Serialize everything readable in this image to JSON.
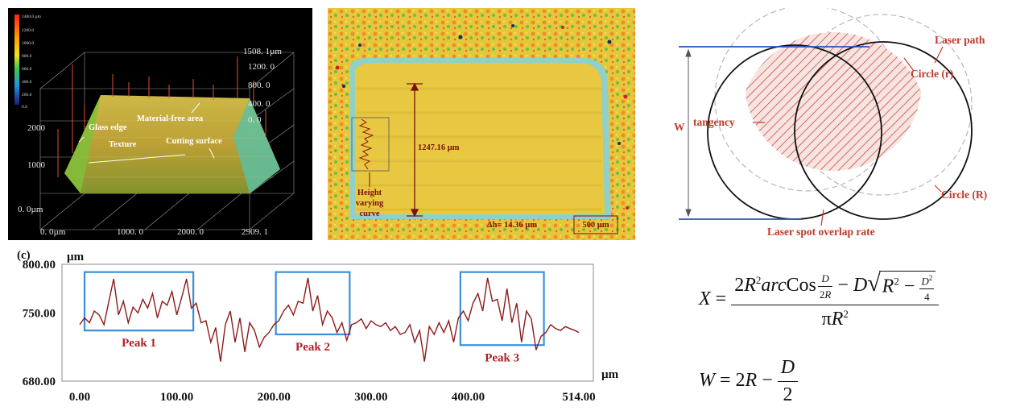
{
  "panel_3d": {
    "colorbar_ticks": [
      "1400.0 µm",
      "1200.0",
      "1000.0",
      "800.0",
      "600.0",
      "400.0",
      "200.0",
      "0.0"
    ],
    "z_ticks": [
      "1508. 1µm",
      "1200. 0",
      "800. 0",
      "400. 0",
      "0. 0"
    ],
    "y_ticks": [
      "2000",
      "1000",
      "0. 0µm"
    ],
    "x_ticks": [
      "0. 0µm",
      "1000. 0",
      "2000. 0",
      "2909. 1"
    ],
    "annotations": {
      "material_free": "Material-free area",
      "glass_edge": "Glass edge",
      "texture": "Texture",
      "cutting_surface": "Cutting surface"
    }
  },
  "panel_map": {
    "dimension": "1247.16 µm",
    "curve_label": [
      "Height",
      "varying",
      "curve"
    ],
    "delta_h": "Δh= 14.36 µm",
    "scale_bar": "500 µm"
  },
  "panel_diagram": {
    "laser_path": "Laser path",
    "circle_r": "Circle (r)",
    "circle_R": "Circle (R)",
    "tangency": "tangency",
    "W": "W",
    "overlap": "Laser spot overlap rate"
  },
  "panel_profile": {
    "panel_label": "(c)",
    "y_unit": "µm",
    "x_unit": "µm",
    "peaks": [
      "Peak 1",
      "Peak 2",
      "Peak 3"
    ],
    "line_color": "#8b1a1a",
    "box_color": "#3a8fd8",
    "peak_label_color": "#b0202a"
  },
  "chart_data": {
    "type": "line",
    "title": "",
    "xlabel": "µm",
    "ylabel": "µm",
    "xlim": [
      0,
      514
    ],
    "ylim": [
      680,
      800
    ],
    "x_ticks": [
      "0.00",
      "100.00",
      "200.00",
      "300.00",
      "400.00",
      "514.00"
    ],
    "y_ticks": [
      "800.00",
      "750.00",
      "680.00"
    ],
    "x": [
      0,
      5,
      10,
      15,
      20,
      25,
      30,
      35,
      40,
      45,
      50,
      55,
      60,
      65,
      70,
      75,
      80,
      85,
      90,
      95,
      100,
      105,
      110,
      115,
      120,
      125,
      130,
      135,
      140,
      145,
      150,
      155,
      160,
      165,
      170,
      175,
      180,
      185,
      190,
      195,
      200,
      205,
      210,
      215,
      220,
      225,
      230,
      235,
      240,
      245,
      250,
      255,
      260,
      265,
      270,
      275,
      280,
      285,
      290,
      295,
      300,
      305,
      310,
      315,
      320,
      325,
      330,
      335,
      340,
      345,
      350,
      355,
      360,
      365,
      370,
      375,
      380,
      385,
      390,
      395,
      400,
      405,
      410,
      415,
      420,
      425,
      430,
      435,
      440,
      445,
      450,
      455,
      460,
      465,
      470,
      475,
      480,
      485,
      490,
      495,
      500,
      505,
      510,
      514
    ],
    "series": [
      {
        "values": [
          738,
          745,
          740,
          752,
          748,
          738,
          762,
          785,
          748,
          762,
          740,
          756,
          750,
          764,
          755,
          770,
          745,
          762,
          758,
          772,
          748,
          766,
          785,
          755,
          760,
          740,
          742,
          720,
          735,
          700,
          738,
          752,
          720,
          745,
          710,
          740,
          732,
          715,
          725,
          730,
          738,
          742,
          752,
          758,
          748,
          762,
          760,
          786,
          752,
          768,
          738,
          752,
          745,
          730,
          740,
          722,
          738,
          740,
          744,
          734,
          742,
          738,
          736,
          740,
          732,
          736,
          728,
          730,
          738,
          720,
          732,
          700,
          736,
          728,
          740,
          730,
          742,
          720,
          745,
          752,
          742,
          760,
          770,
          752,
          786,
          762,
          764,
          742,
          775,
          740,
          760,
          720,
          752,
          744,
          712,
          726,
          730,
          738,
          734,
          732,
          736,
          734,
          732,
          730
        ]
      }
    ],
    "peak_boxes": [
      {
        "label": "Peak 1",
        "x_range": [
          5,
          117
        ],
        "y_range": [
          732,
          792
        ]
      },
      {
        "label": "Peak 2",
        "x_range": [
          202,
          278
        ],
        "y_range": [
          728,
          792
        ]
      },
      {
        "label": "Peak 3",
        "x_range": [
          392,
          478
        ],
        "y_range": [
          717,
          792
        ]
      }
    ]
  },
  "formulas": {
    "X_lhs": "X",
    "W_lhs": "W"
  }
}
